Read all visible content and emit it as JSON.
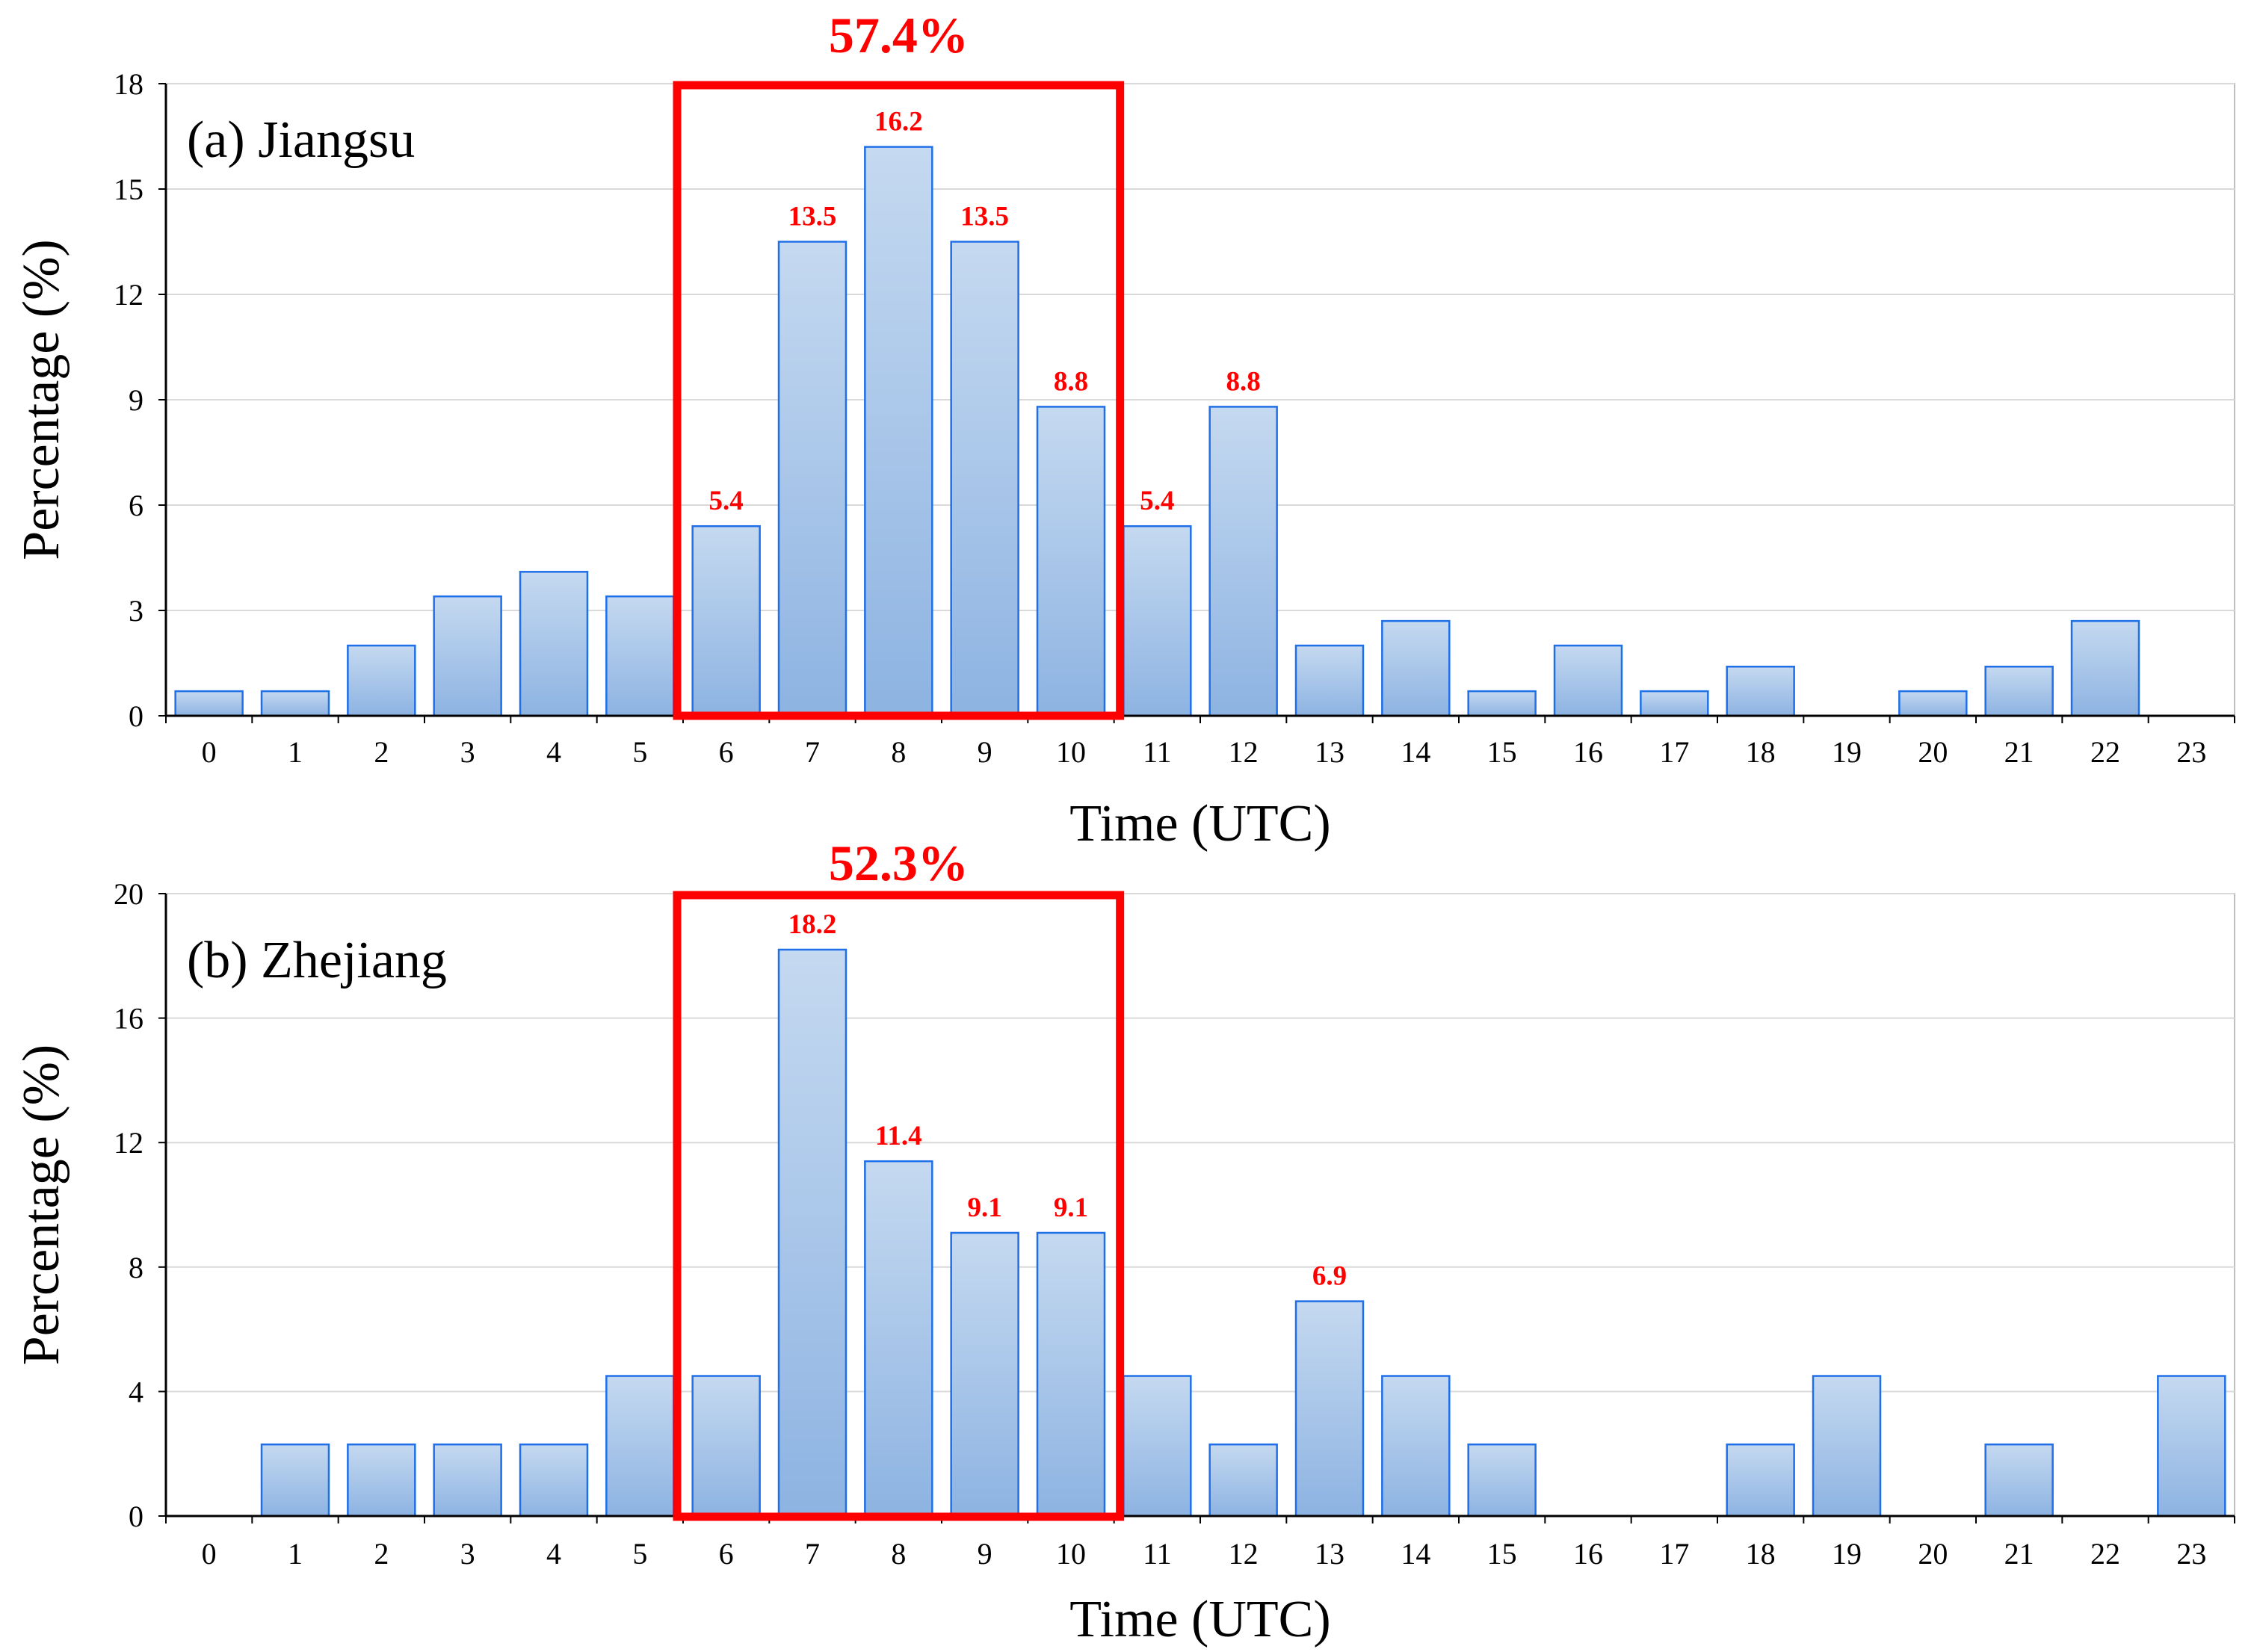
{
  "chart_data": [
    {
      "type": "bar",
      "title": "",
      "panel_label": "(a) Jiangsu",
      "xlabel": "Time (UTC)",
      "ylabel": "Percentage (%)",
      "ylim": [
        0,
        18
      ],
      "yticks": [
        0,
        3,
        6,
        9,
        12,
        15,
        18
      ],
      "categories": [
        "0",
        "1",
        "2",
        "3",
        "4",
        "5",
        "6",
        "7",
        "8",
        "9",
        "10",
        "11",
        "12",
        "13",
        "14",
        "15",
        "16",
        "17",
        "18",
        "19",
        "20",
        "21",
        "22",
        "23"
      ],
      "values": [
        0.7,
        0.7,
        2.0,
        3.4,
        4.1,
        3.4,
        5.4,
        13.5,
        16.2,
        13.5,
        8.8,
        5.4,
        8.8,
        2.0,
        2.7,
        0.7,
        2.0,
        0.7,
        1.4,
        0,
        0.7,
        1.4,
        2.7,
        0
      ],
      "data_labels": [
        {
          "index": 6,
          "text": "5.4"
        },
        {
          "index": 7,
          "text": "13.5"
        },
        {
          "index": 8,
          "text": "16.2"
        },
        {
          "index": 9,
          "text": "13.5"
        },
        {
          "index": 10,
          "text": "8.8"
        },
        {
          "index": 11,
          "text": "5.4"
        },
        {
          "index": 12,
          "text": "8.8"
        }
      ],
      "highlight": {
        "from": "6",
        "to": "10",
        "label": "57.4%"
      },
      "grid": true
    },
    {
      "type": "bar",
      "title": "",
      "panel_label": "(b) Zhejiang",
      "xlabel": "Time (UTC)",
      "ylabel": "Percentage (%)",
      "ylim": [
        0,
        20
      ],
      "yticks": [
        0,
        4,
        8,
        12,
        16,
        20
      ],
      "categories": [
        "0",
        "1",
        "2",
        "3",
        "4",
        "5",
        "6",
        "7",
        "8",
        "9",
        "10",
        "11",
        "12",
        "13",
        "14",
        "15",
        "16",
        "17",
        "18",
        "19",
        "20",
        "21",
        "22",
        "23"
      ],
      "values": [
        0,
        2.3,
        2.3,
        2.3,
        2.3,
        4.5,
        4.5,
        18.2,
        11.4,
        9.1,
        9.1,
        4.5,
        2.3,
        6.9,
        4.5,
        2.3,
        0,
        0,
        2.3,
        4.5,
        0,
        2.3,
        0,
        4.5
      ],
      "data_labels": [
        {
          "index": 7,
          "text": "18.2"
        },
        {
          "index": 8,
          "text": "11.4"
        },
        {
          "index": 9,
          "text": "9.1"
        },
        {
          "index": 10,
          "text": "9.1"
        },
        {
          "index": 13,
          "text": "6.9"
        }
      ],
      "highlight": {
        "from": "6",
        "to": "10",
        "label": "52.3%"
      },
      "grid": true
    }
  ],
  "colors": {
    "bar_top": "#c5d9f0",
    "bar_bottom": "#8db3e2",
    "bar_stroke": "#1f6fe8",
    "highlight": "#ff0000",
    "grid": "#d9d9d9",
    "axis": "#000000"
  }
}
